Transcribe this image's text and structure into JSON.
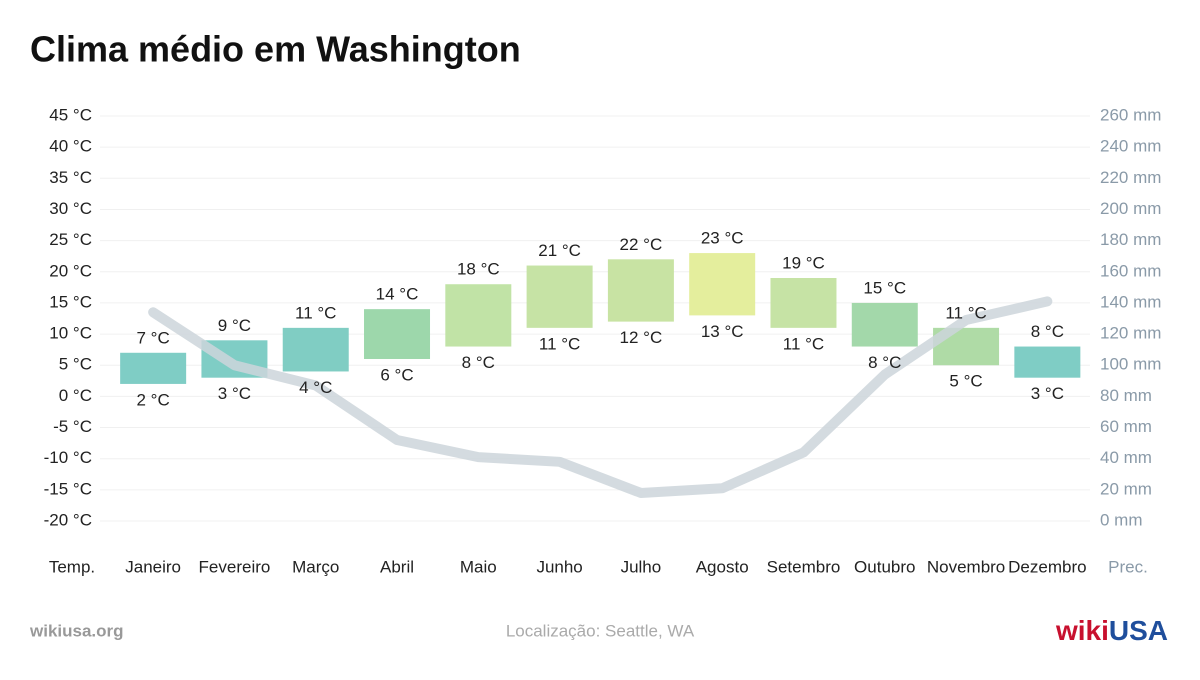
{
  "chart_data": {
    "type": "range-bar-line",
    "title": "Clima médio em Washington",
    "y_label": "Temp.",
    "y2_label": "Prec.",
    "categories": [
      "Janeiro",
      "Fevereiro",
      "Março",
      "Abril",
      "Maio",
      "Junho",
      "Julho",
      "Agosto",
      "Setembro",
      "Outubro",
      "Novembro",
      "Dezembro"
    ],
    "ylim": [
      -20,
      45
    ],
    "yticks": [
      {
        "value": 45,
        "label": "45 °C"
      },
      {
        "value": 40,
        "label": "40 °C"
      },
      {
        "value": 35,
        "label": "35 °C"
      },
      {
        "value": 30,
        "label": "30 °C"
      },
      {
        "value": 25,
        "label": "25 °C"
      },
      {
        "value": 20,
        "label": "20 °C"
      },
      {
        "value": 15,
        "label": "15 °C"
      },
      {
        "value": 10,
        "label": "10 °C"
      },
      {
        "value": 5,
        "label": "5 °C"
      },
      {
        "value": 0,
        "label": "0 °C"
      },
      {
        "value": -5,
        "label": "-5 °C"
      },
      {
        "value": -10,
        "label": "-10 °C"
      },
      {
        "value": -15,
        "label": "-15 °C"
      },
      {
        "value": -20,
        "label": "-20 °C"
      }
    ],
    "y2lim": [
      0,
      260
    ],
    "y2ticks": [
      {
        "value": 260,
        "label": "260 mm"
      },
      {
        "value": 240,
        "label": "240 mm"
      },
      {
        "value": 220,
        "label": "220 mm"
      },
      {
        "value": 200,
        "label": "200 mm"
      },
      {
        "value": 180,
        "label": "180 mm"
      },
      {
        "value": 160,
        "label": "160 mm"
      },
      {
        "value": 140,
        "label": "140 mm"
      },
      {
        "value": 120,
        "label": "120 mm"
      },
      {
        "value": 100,
        "label": "100 mm"
      },
      {
        "value": 80,
        "label": "80 mm"
      },
      {
        "value": 60,
        "label": "60 mm"
      },
      {
        "value": 40,
        "label": "40 mm"
      },
      {
        "value": 20,
        "label": "20 mm"
      },
      {
        "value": 0,
        "label": "0 mm"
      }
    ],
    "grid": true,
    "series": [
      {
        "type": "range-bar",
        "high": [
          7,
          9,
          11,
          14,
          18,
          21,
          22,
          23,
          19,
          15,
          11,
          8
        ],
        "low": [
          2,
          3,
          4,
          6,
          8,
          11,
          12,
          13,
          11,
          8,
          5,
          3
        ],
        "high_labels": [
          "7 °C",
          "9 °C",
          "11 °C",
          "14 °C",
          "18 °C",
          "21 °C",
          "22 °C",
          "23 °C",
          "19 °C",
          "15 °C",
          "11 °C",
          "8 °C"
        ],
        "low_labels": [
          "2 °C",
          "3 °C",
          "4 °C",
          "6 °C",
          "8 °C",
          "11 °C",
          "12 °C",
          "13 °C",
          "11 °C",
          "8 °C",
          "5 °C",
          "3 °C"
        ],
        "colors": [
          "#7fcdc5",
          "#7fcdc5",
          "#80cdc3",
          "#9dd7ab",
          "#c1e3a6",
          "#c6e3a5",
          "#c8e3a3",
          "#e4ee9d",
          "#c6e3a5",
          "#a3d8aa",
          "#afdba6",
          "#7fcdc5"
        ]
      },
      {
        "type": "line",
        "axis": "y2",
        "color": "#cdd5da",
        "values": [
          134,
          100,
          87,
          52,
          41,
          38,
          18,
          21,
          44,
          94,
          129,
          141
        ]
      }
    ]
  },
  "footer": {
    "site": "wikiusa.org",
    "location": "Localização: Seattle, WA",
    "logo_a": "wiki",
    "logo_b": "USA"
  }
}
